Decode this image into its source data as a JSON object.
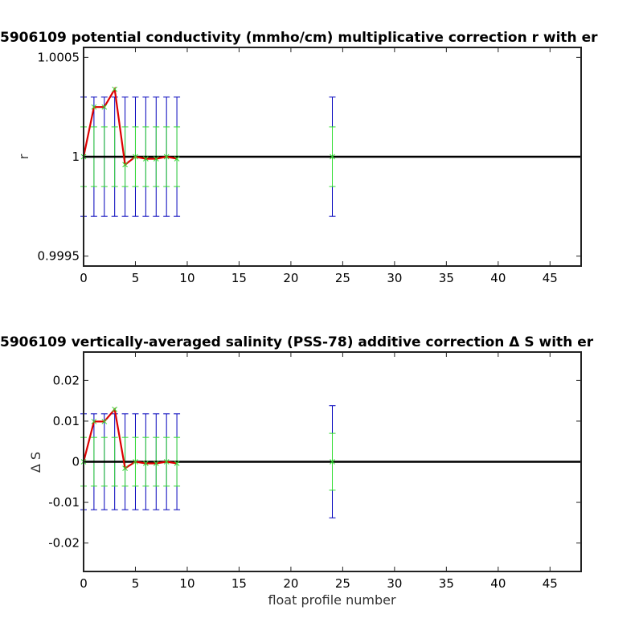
{
  "chart_data": [
    {
      "type": "line",
      "title": "5906109 potential conductivity (mmho/cm) multiplicative correction r with er",
      "xlabel": "",
      "ylabel": "r",
      "xlim": [
        0,
        48
      ],
      "ylim": [
        0.99945,
        1.00055
      ],
      "xticks": [
        0,
        5,
        10,
        15,
        20,
        25,
        30,
        35,
        40,
        45
      ],
      "xtick_labels": [
        "0",
        "5",
        "10",
        "15",
        "20",
        "25",
        "30",
        "35",
        "40",
        "45"
      ],
      "yticks": [
        0.9995,
        1,
        1.0005
      ],
      "ytick_labels": [
        "0.9995",
        "1",
        "1.0005"
      ],
      "grid": false,
      "reference_line": 1,
      "line_color": "#dd0000",
      "reference_color": "#000000",
      "x": [
        0,
        1,
        2,
        3,
        4,
        5,
        6,
        7,
        8,
        9,
        24
      ],
      "values": [
        1,
        1.00025,
        1.00025,
        1.00034,
        0.99996,
        1,
        0.99999,
        0.99999,
        1,
        0.99999,
        1
      ],
      "line_x": [
        0,
        1,
        2,
        3,
        4,
        5,
        6,
        7,
        8,
        9
      ],
      "line_values": [
        1,
        1.00025,
        1.00025,
        1.00034,
        0.99996,
        1,
        0.99999,
        0.99999,
        1,
        0.99999
      ],
      "error_bars": [
        {
          "color": "#0000bb",
          "low": 0.9997,
          "high": 1.0003
        },
        {
          "color": "#33dd33",
          "low": 0.99985,
          "high": 1.00015
        }
      ]
    },
    {
      "type": "line",
      "title": "5906109 vertically-averaged salinity (PSS-78) additive correction Δ S with er",
      "xlabel": "float profile number",
      "ylabel": "Δ S",
      "xlim": [
        0,
        48
      ],
      "ylim": [
        -0.027,
        0.027
      ],
      "xticks": [
        0,
        5,
        10,
        15,
        20,
        25,
        30,
        35,
        40,
        45
      ],
      "xtick_labels": [
        "0",
        "5",
        "10",
        "15",
        "20",
        "25",
        "30",
        "35",
        "40",
        "45"
      ],
      "yticks": [
        -0.02,
        -0.01,
        0,
        0.01,
        0.02
      ],
      "ytick_labels": [
        "-0.02",
        "-0.01",
        "0",
        "0.01",
        "0.02"
      ],
      "grid": false,
      "reference_line": 0,
      "line_color": "#dd0000",
      "reference_color": "#000000",
      "x": [
        0,
        1,
        2,
        3,
        4,
        5,
        6,
        7,
        8,
        9,
        24
      ],
      "values": [
        0,
        0.0099,
        0.0099,
        0.0129,
        -0.0016,
        0,
        -0.0004,
        -0.0004,
        0,
        -0.0004,
        0
      ],
      "line_x": [
        0,
        1,
        2,
        3,
        4,
        5,
        6,
        7,
        8,
        9
      ],
      "line_values": [
        0,
        0.0099,
        0.0099,
        0.0129,
        -0.0016,
        0,
        -0.0004,
        -0.0004,
        0,
        -0.0004
      ],
      "error_bars": [
        {
          "color": "#0000bb",
          "low": [
            -0.0118,
            -0.0118,
            -0.0118,
            -0.0118,
            -0.0118,
            -0.0118,
            -0.0118,
            -0.0118,
            -0.0118,
            -0.0118,
            -0.0138
          ],
          "high": [
            0.0118,
            0.0118,
            0.0118,
            0.0118,
            0.0118,
            0.0118,
            0.0118,
            0.0118,
            0.0118,
            0.0118,
            0.0138
          ]
        },
        {
          "color": "#33dd33",
          "low": [
            -0.006,
            -0.006,
            -0.006,
            -0.006,
            -0.006,
            -0.006,
            -0.006,
            -0.006,
            -0.006,
            -0.006,
            -0.007
          ],
          "high": [
            0.006,
            0.006,
            0.006,
            0.006,
            0.006,
            0.006,
            0.006,
            0.006,
            0.006,
            0.006,
            0.007
          ]
        }
      ]
    }
  ]
}
